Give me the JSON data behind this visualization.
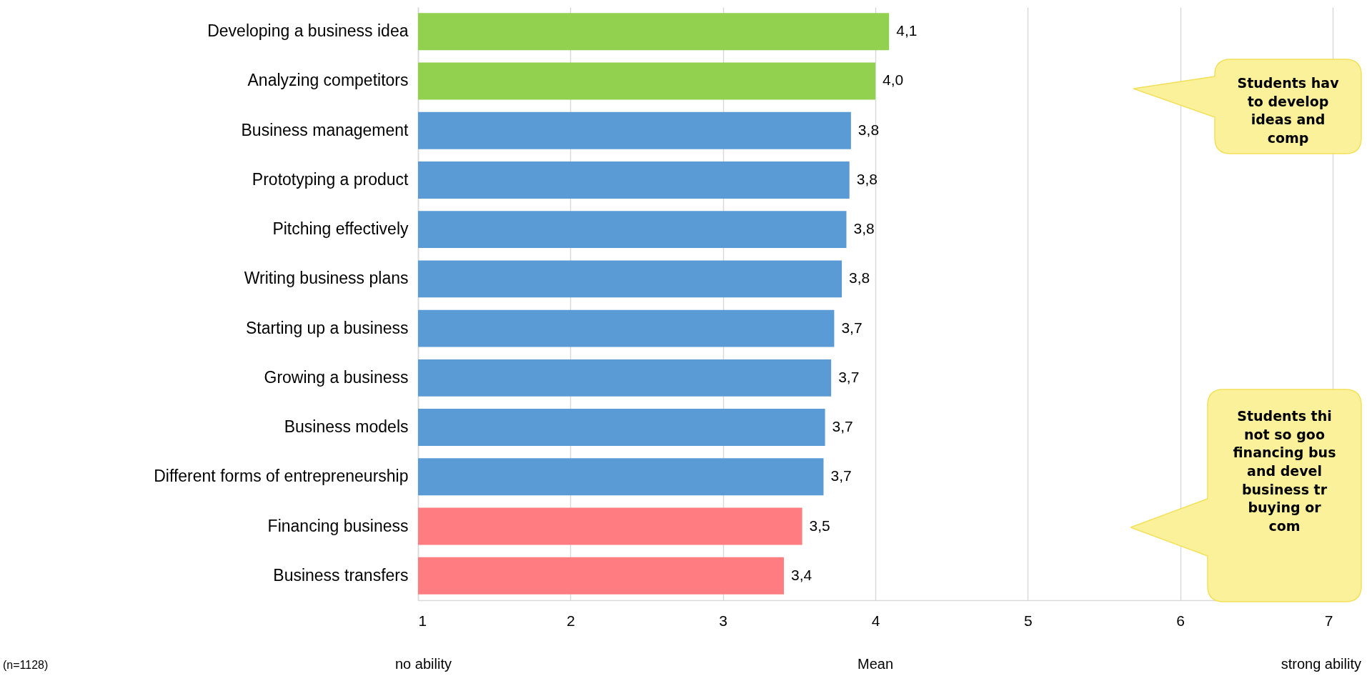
{
  "chart_data": {
    "type": "bar",
    "orientation": "horizontal",
    "xlabel": "Mean",
    "categories": [
      "Developing a business idea",
      "Analyzing competitors",
      "Business management",
      "Prototyping a product",
      "Pitching effectively",
      "Writing business plans",
      "Starting up a business",
      "Growing a business",
      "Business models",
      "Different forms of entrepreneurship",
      "Financing business",
      "Business transfers"
    ],
    "values": [
      4.09,
      4.0,
      3.84,
      3.83,
      3.81,
      3.78,
      3.73,
      3.71,
      3.67,
      3.66,
      3.52,
      3.4
    ],
    "value_labels": [
      "4,1",
      "4,0",
      "3,8",
      "3,8",
      "3,8",
      "3,8",
      "3,7",
      "3,7",
      "3,7",
      "3,7",
      "3,5",
      "3,4"
    ],
    "colors": [
      "#92d050",
      "#92d050",
      "#5b9bd5",
      "#5b9bd5",
      "#5b9bd5",
      "#5b9bd5",
      "#5b9bd5",
      "#5b9bd5",
      "#5b9bd5",
      "#5b9bd5",
      "#ff7c80",
      "#ff7c80"
    ],
    "xlim": [
      1,
      7
    ],
    "xticks": [
      1,
      2,
      3,
      4,
      5,
      6,
      7
    ],
    "grid": "x",
    "annotations": [
      "Students hav\nto develop\nideas and\ncomp",
      "Students thi\nnot so goo\nfinancing bus\nand devel\nbusiness tr\nbuying or\ncom",
      "(n=1128)",
      "no ability",
      "strong ability"
    ]
  }
}
